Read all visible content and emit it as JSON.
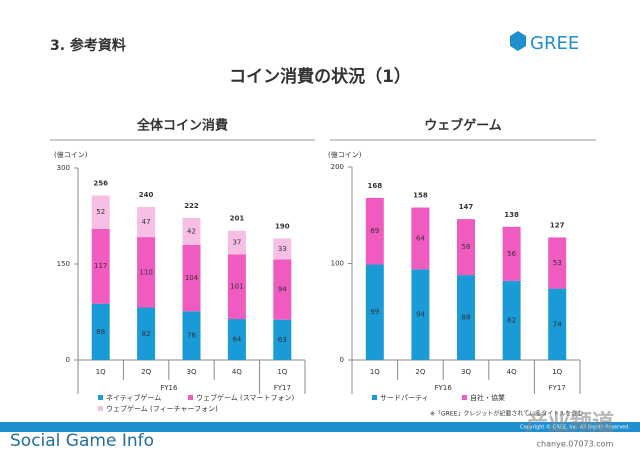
{
  "page": {
    "section": "3. 参考資料",
    "logo": "GREE",
    "title": "コイン消費の状況（1）",
    "note": "※「GREE」クレジットが記載されているタイトルを含む",
    "copyright": "Copyright © GREE, Inc. All Rights Reserved.",
    "watermark": "Social Game Info",
    "watermark2": "产业频道",
    "watermark2_url": "chanye.07073.com"
  },
  "chart_data": [
    {
      "type": "stacked-bar",
      "title": "全体コイン消費",
      "y_label": "(億コイン)",
      "categories": [
        "1Q",
        "2Q",
        "3Q",
        "4Q",
        "1Q"
      ],
      "groups": [
        "FY16",
        "FY17"
      ],
      "ylim": [
        0,
        300
      ],
      "yticks": [
        0,
        150,
        300
      ],
      "series": [
        {
          "name": "ネイティブゲーム",
          "color": "#1a9ad6",
          "values": [
            88,
            82,
            76,
            64,
            63
          ]
        },
        {
          "name": "ウェブゲーム (スマートフォン)",
          "color": "#ef5bbf",
          "values": [
            117,
            110,
            104,
            101,
            94
          ]
        },
        {
          "name": "ウェブゲーム (フィーチャーフォン)",
          "color": "#f7bfe4",
          "values": [
            52,
            47,
            42,
            37,
            33
          ]
        }
      ],
      "totals": [
        256,
        240,
        222,
        201,
        190
      ]
    },
    {
      "type": "stacked-bar",
      "title": "ウェブゲーム",
      "y_label": "(億コイン)",
      "categories": [
        "1Q",
        "2Q",
        "3Q",
        "4Q",
        "1Q"
      ],
      "groups": [
        "FY16",
        "FY17"
      ],
      "ylim": [
        0,
        200
      ],
      "yticks": [
        0,
        100,
        200
      ],
      "series": [
        {
          "name": "サードパーティ",
          "color": "#1a9ad6",
          "values": [
            99,
            94,
            88,
            82,
            74
          ]
        },
        {
          "name": "自社・協業",
          "color": "#ef5bbf",
          "values": [
            69,
            64,
            58,
            56,
            53
          ]
        }
      ],
      "totals": [
        168,
        158,
        147,
        138,
        127
      ]
    }
  ]
}
